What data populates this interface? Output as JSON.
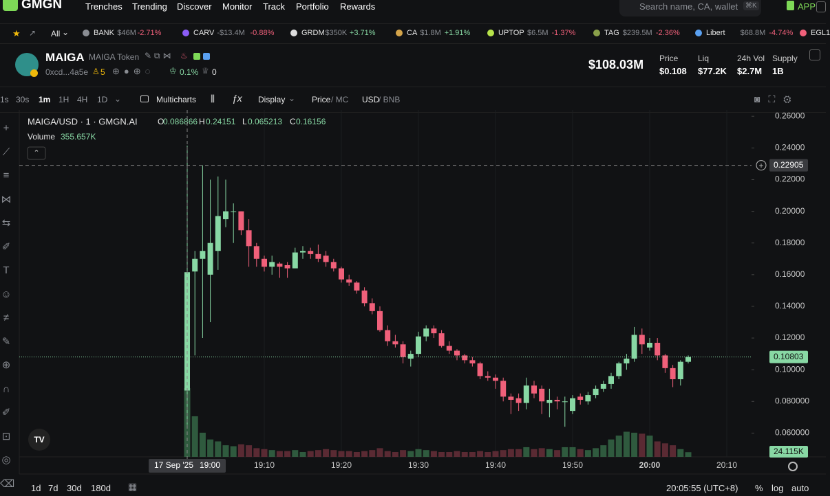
{
  "nav": {
    "logo": "GMGN",
    "menu": [
      "Trenches",
      "Trending",
      "Discover",
      "Monitor",
      "Track",
      "Portfolio",
      "Rewards"
    ],
    "search": "Search name, CA, wallet",
    "shortcut": "⌘K",
    "app": "APP"
  },
  "ticker": {
    "filter": "All",
    "items": [
      {
        "name": "BANK",
        "value": "$46M",
        "change": "-2.71%"
      },
      {
        "name": "CARV",
        "value": "-$13.4M",
        "change": "-0.88%"
      },
      {
        "name": "GRDM",
        "value": "$350K",
        "change": "+3.71%"
      },
      {
        "name": "CA",
        "value": "$1.8M",
        "change": "+1.91%"
      },
      {
        "name": "UPTOP",
        "value": "$6.5M",
        "change": "-1.37%"
      },
      {
        "name": "TAG",
        "value": "$239.5M",
        "change": "-2.36%"
      },
      {
        "name": "Libert",
        "value": "$68.8M",
        "change": "-4.74%"
      },
      {
        "name": "EGL1"
      }
    ]
  },
  "token": {
    "symbol": "MAIGA",
    "name": "MAIGA Token",
    "address": "0xcd...4a5e",
    "holders": "5",
    "percent": "0.1%",
    "count": "0",
    "market_cap": "$108.03M",
    "stats": [
      {
        "label": "Price",
        "value": "$0.108"
      },
      {
        "label": "Liq",
        "value": "$77.2K"
      },
      {
        "label": "24h Vol",
        "value": "$2.7M"
      },
      {
        "label": "Supply",
        "value": "1B"
      }
    ]
  },
  "toolbar": {
    "intervals": [
      "1s",
      "30s",
      "1m",
      "1H",
      "4H",
      "1D"
    ],
    "multicharts": "Multicharts",
    "display": "Display",
    "price": "Price",
    "mc": "/ MC",
    "usd": "USD",
    "bnb": "/ BNB"
  },
  "chart": {
    "type": "candlestick",
    "title": "MAIGA/USD · 1 · GMGN.AI",
    "ohlc_keys": [
      "O",
      "H",
      "L",
      "C"
    ],
    "volume_title": "Volume",
    "volume_label": "355.657K",
    "last_volume_label": "24.115K",
    "open": [
      0.086866,
      0.162,
      0.17,
      0.16,
      0.175,
      0.195,
      0.2,
      0.2,
      0.188,
      0.178,
      0.17,
      0.165,
      0.167,
      0.166,
      0.164,
      0.174,
      0.175,
      0.173,
      0.172,
      0.168,
      0.164,
      0.157,
      0.155,
      0.15,
      0.142,
      0.137,
      0.125,
      0.118,
      0.116,
      0.107,
      0.11,
      0.121,
      0.126,
      0.123,
      0.115,
      0.112,
      0.109,
      0.106,
      0.104,
      0.096,
      0.095,
      0.093,
      0.083,
      0.082,
      0.079,
      0.09,
      0.088,
      0.079,
      0.081,
      0.08,
      0.074,
      0.083,
      0.08,
      0.084,
      0.088,
      0.091,
      0.096,
      0.104,
      0.107,
      0.122,
      0.114,
      0.117,
      0.109,
      0.101,
      0.094,
      0.105
    ],
    "high": [
      0.24151,
      0.175,
      0.229,
      0.22,
      0.222,
      0.22,
      0.205,
      0.2,
      0.195,
      0.18,
      0.172,
      0.172,
      0.168,
      0.168,
      0.177,
      0.178,
      0.177,
      0.179,
      0.175,
      0.17,
      0.165,
      0.16,
      0.156,
      0.152,
      0.145,
      0.14,
      0.128,
      0.122,
      0.118,
      0.112,
      0.124,
      0.128,
      0.128,
      0.125,
      0.118,
      0.113,
      0.11,
      0.108,
      0.105,
      0.099,
      0.097,
      0.095,
      0.085,
      0.085,
      0.095,
      0.093,
      0.09,
      0.088,
      0.083,
      0.083,
      0.084,
      0.085,
      0.086,
      0.09,
      0.093,
      0.098,
      0.105,
      0.11,
      0.127,
      0.126,
      0.12,
      0.12,
      0.11,
      0.103,
      0.106,
      0.109
    ],
    "low": [
      0.065213,
      0.109,
      0.12,
      0.13,
      0.163,
      0.19,
      0.18,
      0.185,
      0.165,
      0.165,
      0.162,
      0.16,
      0.158,
      0.158,
      0.164,
      0.17,
      0.17,
      0.168,
      0.165,
      0.162,
      0.155,
      0.153,
      0.148,
      0.14,
      0.135,
      0.124,
      0.115,
      0.114,
      0.104,
      0.102,
      0.108,
      0.118,
      0.12,
      0.114,
      0.11,
      0.106,
      0.104,
      0.102,
      0.094,
      0.093,
      0.088,
      0.08,
      0.072,
      0.074,
      0.075,
      0.082,
      0.072,
      0.07,
      0.075,
      0.064,
      0.072,
      0.078,
      0.078,
      0.082,
      0.086,
      0.088,
      0.094,
      0.1,
      0.105,
      0.11,
      0.112,
      0.106,
      0.098,
      0.089,
      0.09,
      0.104
    ],
    "close": [
      0.16156,
      0.17,
      0.175,
      0.18,
      0.197,
      0.2,
      0.2,
      0.188,
      0.178,
      0.17,
      0.165,
      0.168,
      0.165,
      0.164,
      0.174,
      0.175,
      0.173,
      0.17,
      0.168,
      0.164,
      0.157,
      0.155,
      0.15,
      0.142,
      0.137,
      0.125,
      0.118,
      0.116,
      0.108,
      0.11,
      0.121,
      0.126,
      0.123,
      0.115,
      0.112,
      0.109,
      0.106,
      0.104,
      0.096,
      0.095,
      0.093,
      0.083,
      0.081,
      0.079,
      0.09,
      0.085,
      0.08,
      0.081,
      0.08,
      0.08,
      0.082,
      0.081,
      0.084,
      0.088,
      0.091,
      0.096,
      0.104,
      0.107,
      0.122,
      0.116,
      0.117,
      0.109,
      0.101,
      0.094,
      0.105,
      0.108
    ],
    "volume": [
      355.657,
      210,
      125,
      90,
      80,
      60,
      55,
      65,
      60,
      45,
      40,
      35,
      30,
      30,
      35,
      25,
      30,
      35,
      40,
      35,
      30,
      30,
      25,
      30,
      35,
      45,
      30,
      25,
      35,
      30,
      40,
      35,
      30,
      25,
      25,
      30,
      25,
      25,
      30,
      25,
      30,
      35,
      40,
      40,
      50,
      40,
      45,
      40,
      35,
      50,
      50,
      40,
      35,
      45,
      60,
      90,
      110,
      130,
      125,
      120,
      110,
      80,
      70,
      60,
      40,
      24.115
    ],
    "ylim": [
      0.045,
      0.264
    ],
    "yticks": [
      {
        "value": 0.26,
        "label": "0.26000"
      },
      {
        "value": 0.24,
        "label": "0.24000"
      },
      {
        "value": 0.22,
        "label": "0.22000"
      },
      {
        "value": 0.2,
        "label": "0.20000"
      },
      {
        "value": 0.18,
        "label": "0.18000"
      },
      {
        "value": 0.16,
        "label": "0.16000"
      },
      {
        "value": 0.14,
        "label": "0.14000"
      },
      {
        "value": 0.12,
        "label": "0.12000"
      },
      {
        "value": 0.1,
        "label": "0.10000"
      },
      {
        "value": 0.08,
        "label": "0.080000"
      },
      {
        "value": 0.06,
        "label": "0.060000"
      }
    ],
    "crosshair_price": 0.22905,
    "last_price": 0.10803,
    "up_color": "#88d8a4",
    "down_color": "#f0607a",
    "hover_date": "17 Sep '25",
    "hover_time": "19:00",
    "time_labels": [
      "19:10",
      "19:20",
      "19:30",
      "19:40",
      "19:50",
      "20:00",
      "20:10"
    ]
  },
  "footer": {
    "ranges": [
      "1d",
      "7d",
      "30d",
      "180d"
    ],
    "clock": "20:05:55 (UTC+8)",
    "percent": "%",
    "log": "log",
    "auto": "auto"
  }
}
